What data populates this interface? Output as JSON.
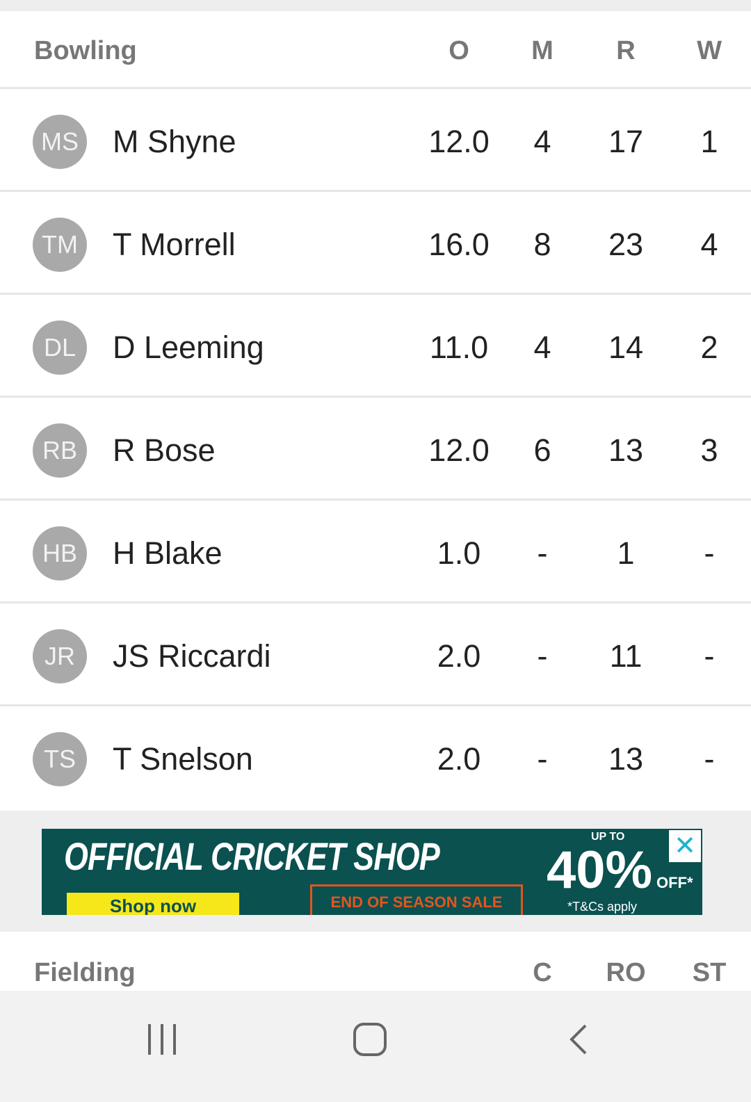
{
  "bowling": {
    "title": "Bowling",
    "columns": [
      "O",
      "M",
      "R",
      "W"
    ],
    "rows": [
      {
        "initials": "MS",
        "name": "M Shyne",
        "o": "12.0",
        "m": "4",
        "r": "17",
        "w": "1"
      },
      {
        "initials": "TM",
        "name": "T Morrell",
        "o": "16.0",
        "m": "8",
        "r": "23",
        "w": "4"
      },
      {
        "initials": "DL",
        "name": "D Leeming",
        "o": "11.0",
        "m": "4",
        "r": "14",
        "w": "2"
      },
      {
        "initials": "RB",
        "name": "R Bose",
        "o": "12.0",
        "m": "6",
        "r": "13",
        "w": "3"
      },
      {
        "initials": "HB",
        "name": "H Blake",
        "o": "1.0",
        "m": "-",
        "r": "1",
        "w": "-"
      },
      {
        "initials": "JR",
        "name": "JS Riccardi",
        "o": "2.0",
        "m": "-",
        "r": "11",
        "w": "-"
      },
      {
        "initials": "TS",
        "name": "T Snelson",
        "o": "2.0",
        "m": "-",
        "r": "13",
        "w": "-"
      }
    ]
  },
  "ad": {
    "headline": "OFFICIAL CRICKET SHOP",
    "button": "Shop now",
    "sale": "END OF SEASON SALE",
    "up_to": "UP TO",
    "percent": "40%",
    "off": "OFF*",
    "terms": "*T&Cs apply",
    "close": "✕",
    "bg_color": "#0a5150"
  },
  "fielding": {
    "title": "Fielding",
    "columns": [
      "C",
      "RO",
      "ST"
    ]
  },
  "navbar": {
    "icons": [
      "recent-apps-icon",
      "home-icon",
      "back-icon"
    ]
  }
}
